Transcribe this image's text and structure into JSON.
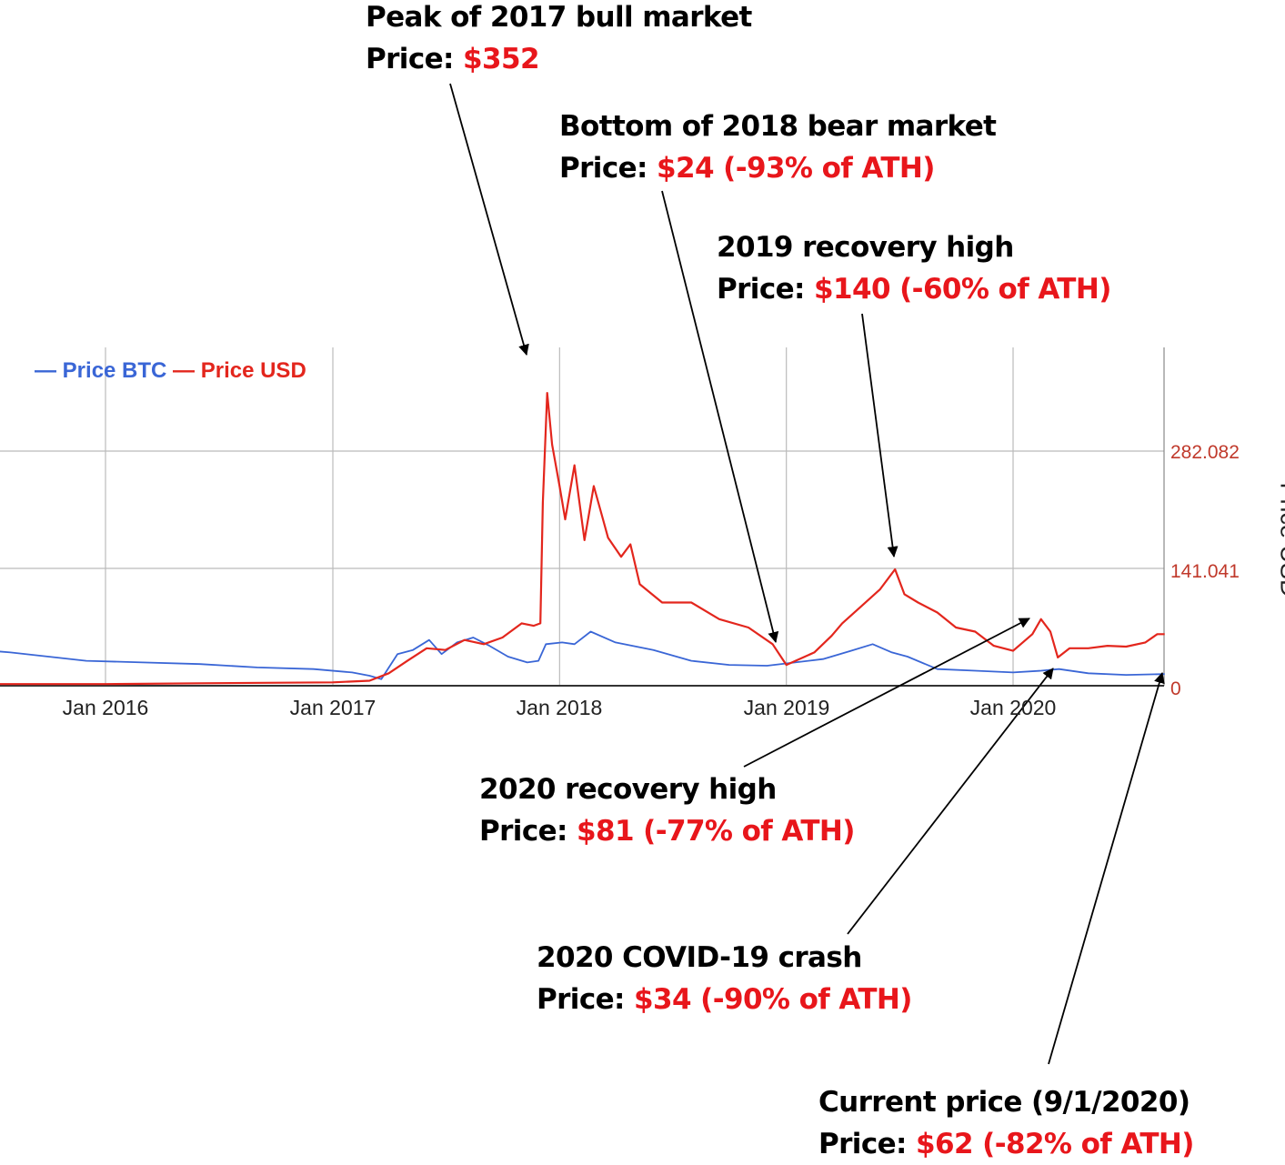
{
  "colors": {
    "btc": "#3a66d6",
    "usd": "#e3261d",
    "annotation_value": "#e8161b",
    "grid": "#bbbbbb"
  },
  "legend": {
    "btc_dash": "—",
    "btc_label": "Price BTC",
    "usd_dash": "—",
    "usd_label": "Price USD"
  },
  "chart_data": {
    "type": "line",
    "xlabel": "",
    "ylabel": "Price USD",
    "x_ticks": [
      "Jan 2016",
      "Jan 2017",
      "Jan 2018",
      "Jan 2019",
      "Jan 2020"
    ],
    "y_ticks": [
      "282.082",
      "141.041",
      "0"
    ],
    "ylim": [
      0,
      400
    ],
    "grid": true,
    "legend_position": "top-left",
    "series": [
      {
        "name": "Price BTC",
        "unit": "relative",
        "x": [
          "2015-07-01",
          "2015-08-01",
          "2015-10-01",
          "2015-12-01",
          "2016-03-01",
          "2016-06-01",
          "2016-09-01",
          "2016-12-01",
          "2017-02-01",
          "2017-03-01",
          "2017-03-20",
          "2017-04-15",
          "2017-05-10",
          "2017-06-05",
          "2017-06-25",
          "2017-07-20",
          "2017-08-15",
          "2017-09-10",
          "2017-10-10",
          "2017-11-10",
          "2017-11-28",
          "2017-12-10",
          "2018-01-05",
          "2018-01-25",
          "2018-02-20",
          "2018-04-01",
          "2018-06-01",
          "2018-08-01",
          "2018-10-01",
          "2018-12-01",
          "2019-01-15",
          "2019-03-01",
          "2019-04-15",
          "2019-05-20",
          "2019-06-20",
          "2019-07-15",
          "2019-09-01",
          "2019-11-01",
          "2020-01-01",
          "2020-02-15",
          "2020-03-15",
          "2020-05-01",
          "2020-07-01",
          "2020-09-01"
        ],
        "y": [
          42,
          40,
          35,
          30,
          28,
          26,
          22,
          20,
          16,
          12,
          8,
          38,
          43,
          55,
          38,
          52,
          58,
          48,
          35,
          28,
          30,
          50,
          52,
          50,
          65,
          52,
          43,
          30,
          25,
          24,
          28,
          32,
          42,
          50,
          40,
          35,
          20,
          18,
          16,
          18,
          20,
          15,
          13,
          14
        ]
      },
      {
        "name": "Price USD",
        "unit": "USD",
        "x": [
          "2015-07-01",
          "2016-01-01",
          "2016-06-01",
          "2017-01-01",
          "2017-03-01",
          "2017-04-01",
          "2017-05-01",
          "2017-06-01",
          "2017-07-01",
          "2017-08-01",
          "2017-09-01",
          "2017-10-01",
          "2017-11-01",
          "2017-11-20",
          "2017-12-01",
          "2017-12-05",
          "2017-12-12",
          "2017-12-20",
          "2018-01-01",
          "2018-01-10",
          "2018-01-25",
          "2018-02-10",
          "2018-02-25",
          "2018-03-10",
          "2018-03-20",
          "2018-04-10",
          "2018-04-25",
          "2018-05-10",
          "2018-06-15",
          "2018-08-01",
          "2018-09-15",
          "2018-11-01",
          "2018-12-10",
          "2019-01-01",
          "2019-02-15",
          "2019-03-15",
          "2019-04-01",
          "2019-05-01",
          "2019-06-01",
          "2019-06-25",
          "2019-07-10",
          "2019-08-01",
          "2019-09-01",
          "2019-10-01",
          "2019-11-01",
          "2019-12-01",
          "2020-01-01",
          "2020-02-01",
          "2020-02-15",
          "2020-03-01",
          "2020-03-13",
          "2020-04-01",
          "2020-05-01",
          "2020-06-01",
          "2020-07-01",
          "2020-08-01",
          "2020-08-20",
          "2020-09-01"
        ],
        "y": [
          2,
          2,
          3,
          4,
          6,
          15,
          30,
          45,
          43,
          55,
          50,
          58,
          75,
          72,
          75,
          220,
          352,
          290,
          240,
          200,
          265,
          175,
          240,
          205,
          178,
          155,
          170,
          122,
          100,
          100,
          80,
          70,
          50,
          25,
          40,
          60,
          75,
          95,
          116,
          140,
          110,
          100,
          88,
          70,
          65,
          48,
          42,
          62,
          80,
          65,
          34,
          45,
          45,
          48,
          47,
          52,
          62,
          62
        ]
      }
    ]
  },
  "annotations": [
    {
      "title": "Peak of 2017 bull market",
      "price_label": "Price:",
      "price_value": "$352"
    },
    {
      "title": "Bottom of 2018 bear market",
      "price_label": "Price:",
      "price_value": "$24 (-93% of ATH)"
    },
    {
      "title": "2019 recovery high",
      "price_label": "Price:",
      "price_value": "$140 (-60% of ATH)"
    },
    {
      "title": "2020 recovery high",
      "price_label": "Price:",
      "price_value": "$81 (-77% of ATH)"
    },
    {
      "title": "2020 COVID-19 crash",
      "price_label": "Price:",
      "price_value": "$34 (-90% of ATH)"
    },
    {
      "title": "Current price (9/1/2020)",
      "price_label": "Price:",
      "price_value": "$62 (-82% of ATH)"
    }
  ]
}
